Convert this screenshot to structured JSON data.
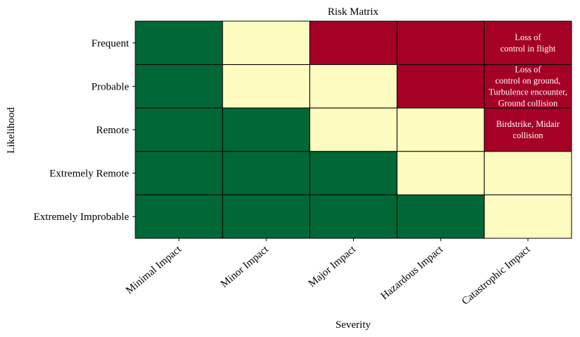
{
  "chart_data": {
    "type": "heatmap",
    "title": "Risk Matrix",
    "xlabel": "Severity",
    "ylabel": "Likelihood",
    "x_categories": [
      "Minimal Impact",
      "Minor Impact",
      "Major Impact",
      "Hazardous Impact",
      "Catastrophic Impact"
    ],
    "y_categories": [
      "Frequent",
      "Probable",
      "Remote",
      "Extremely Remote",
      "Extremely Improbable"
    ],
    "values": [
      [
        "low",
        "medium",
        "high",
        "high",
        "high"
      ],
      [
        "low",
        "medium",
        "medium",
        "high",
        "high"
      ],
      [
        "low",
        "low",
        "medium",
        "medium",
        "high"
      ],
      [
        "low",
        "low",
        "low",
        "medium",
        "medium"
      ],
      [
        "low",
        "low",
        "low",
        "low",
        "medium"
      ]
    ],
    "colors": {
      "low": "#006837",
      "medium": "#fefbc0",
      "high": "#a50026",
      "grid": "#000000",
      "cell_text": "#ffffff"
    },
    "annotations": [
      {
        "row": 0,
        "col": 4,
        "lines": [
          "Loss of",
          "control in flight"
        ]
      },
      {
        "row": 1,
        "col": 4,
        "lines": [
          "Loss of",
          "control on ground,",
          "Turbulence encounter,",
          "Ground collision"
        ]
      },
      {
        "row": 2,
        "col": 4,
        "lines": [
          "Birdstrike, Midair",
          "collision"
        ]
      }
    ],
    "grid": true,
    "legend": "none"
  }
}
